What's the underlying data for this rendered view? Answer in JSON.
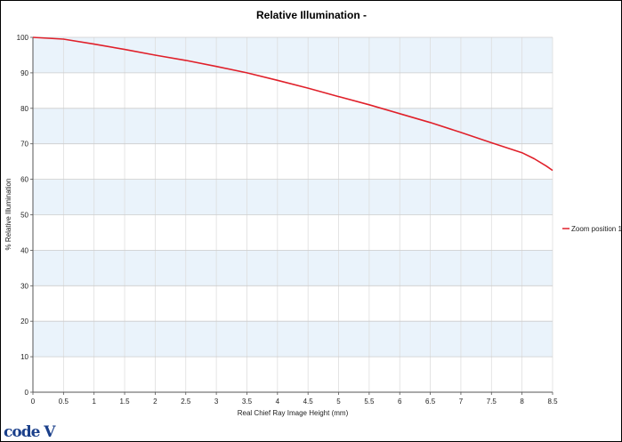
{
  "logo_text": "code V",
  "colors": {
    "series": "#e0202a",
    "band": "#eaf3fb",
    "grid": "#cccccc"
  },
  "chart_data": {
    "type": "line",
    "title": "Relative Illumination -",
    "xlabel": "Real Chief Ray Image Height (mm)",
    "ylabel": "% Relative Illumination",
    "xlim": [
      0,
      8.5
    ],
    "ylim": [
      0,
      100
    ],
    "x_ticks": [
      "0",
      "0.5",
      "1",
      "1.5",
      "2",
      "2.5",
      "3",
      "3.5",
      "4",
      "4.5",
      "5",
      "5.5",
      "6",
      "6.5",
      "7",
      "7.5",
      "8",
      "8.5"
    ],
    "y_ticks": [
      "0",
      "10",
      "20",
      "30",
      "40",
      "50",
      "60",
      "70",
      "80",
      "90",
      "100"
    ],
    "grid": true,
    "legend": "right",
    "series": [
      {
        "name": "Zoom position 1",
        "x": [
          0,
          0.5,
          1,
          1.5,
          2,
          2.5,
          3,
          3.5,
          4,
          4.5,
          5,
          5.5,
          6,
          6.5,
          7,
          7.5,
          8,
          8.2,
          8.4,
          8.5
        ],
        "y": [
          100,
          99.5,
          98.1,
          96.6,
          95,
          93.5,
          91.8,
          90,
          87.9,
          85.7,
          83.3,
          81,
          78.5,
          76,
          73.2,
          70.3,
          67.5,
          65.8,
          63.7,
          62.5
        ]
      }
    ]
  }
}
